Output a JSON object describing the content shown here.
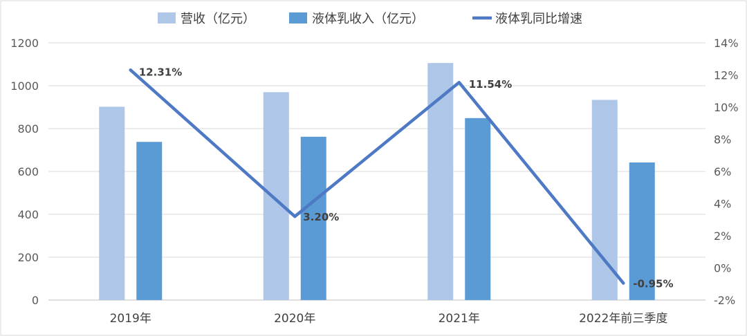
{
  "chart_data": {
    "type": "bar",
    "categories": [
      "2019年",
      "2020年",
      "2021年",
      "2022年前三季度"
    ],
    "series": [
      {
        "name": "营收（亿元）",
        "kind": "bar",
        "axis": "left",
        "color": "#aec6e7",
        "values": [
          902,
          970,
          1106,
          934
        ]
      },
      {
        "name": "液体乳收入（亿元）",
        "kind": "bar",
        "axis": "left",
        "color": "#5b9bd5",
        "values": [
          738,
          762,
          849,
          642
        ]
      },
      {
        "name": "液体乳同比增速",
        "kind": "line",
        "axis": "right",
        "color": "#4e79c4",
        "values": [
          12.31,
          3.2,
          11.54,
          -0.95
        ],
        "labels": [
          "12.31%",
          "3.20%",
          "11.54%",
          "-0.95%"
        ]
      }
    ],
    "y_left": {
      "min": 0,
      "max": 1200,
      "step": 200,
      "ticks": [
        "0",
        "200",
        "400",
        "600",
        "800",
        "1000",
        "1200"
      ]
    },
    "y_right": {
      "min": -2,
      "max": 14,
      "step": 2,
      "ticks": [
        "-2%",
        "0%",
        "2%",
        "4%",
        "6%",
        "8%",
        "10%",
        "12%",
        "14%"
      ]
    },
    "grid": true,
    "legend_position": "top"
  }
}
